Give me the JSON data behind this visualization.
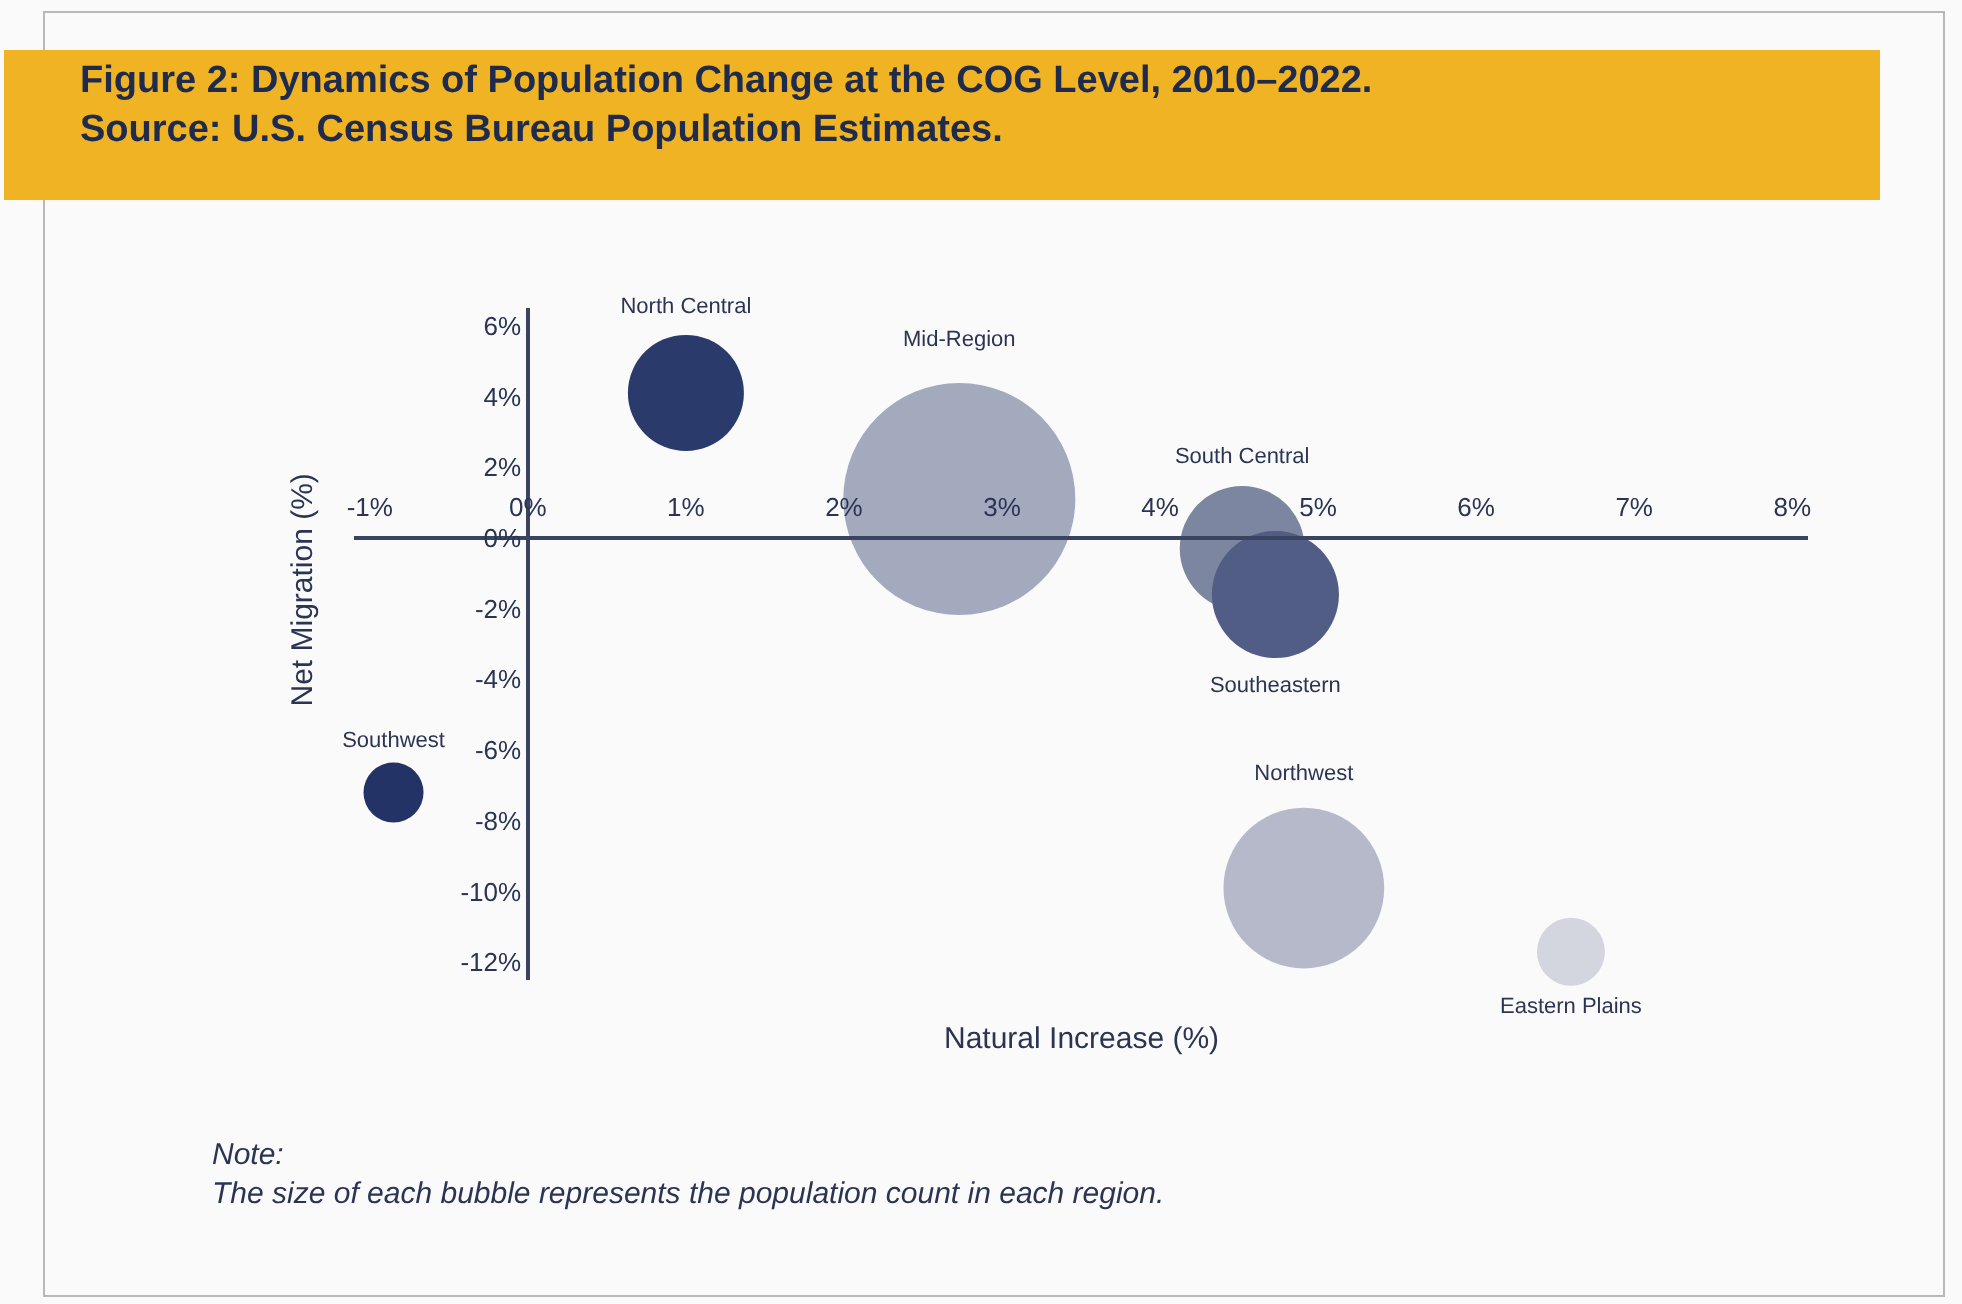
{
  "chart_data": {
    "type": "bubble",
    "title": "Figure 2: Dynamics of Population Change at the COG Level, 2010–2022.\nSource: U.S. Census Bureau Population Estimates.",
    "xlabel": "Natural Increase (%)",
    "ylabel": "Net Migration (%)",
    "series": [
      {
        "name": "North Central",
        "color": "#2a3a6a",
        "x": [
          1.0
        ],
        "values": [
          4.1
        ],
        "sizes": [
          0.25
        ]
      },
      {
        "name": "Mid-Region",
        "color": "#a3aabe",
        "x": [
          2.73
        ],
        "values": [
          1.1
        ],
        "sizes": [
          1
        ]
      },
      {
        "name": "South Central",
        "color": "#7d86a0",
        "x": [
          4.52
        ],
        "values": [
          -0.3
        ],
        "sizes": [
          0.29
        ]
      },
      {
        "name": "Southeastern",
        "color": "#525d85",
        "x": [
          4.73
        ],
        "values": [
          -1.6
        ],
        "sizes": [
          0.3
        ]
      },
      {
        "name": "Southwest",
        "color": "#243366",
        "x": [
          -0.85
        ],
        "values": [
          -7.2
        ],
        "sizes": [
          0.067
        ]
      },
      {
        "name": "Northwest",
        "color": "#b5b9c9",
        "x": [
          4.91
        ],
        "values": [
          -9.9
        ],
        "sizes": [
          0.48
        ]
      },
      {
        "name": "Eastern Plains",
        "color": "#d4d6df",
        "x": [
          6.6
        ],
        "values": [
          -11.7
        ],
        "sizes": [
          0.086
        ]
      }
    ],
    "xlim": [
      -1.1,
      8.1
    ],
    "ylim": [
      -12.5,
      6.5
    ],
    "xticks": [
      {
        "value": -1,
        "label": "-1%"
      },
      {
        "value": 0,
        "label": "0%"
      },
      {
        "value": 1,
        "label": "1%"
      },
      {
        "value": 2,
        "label": "2%"
      },
      {
        "value": 3,
        "label": "3%"
      },
      {
        "value": 4,
        "label": "4%"
      },
      {
        "value": 5,
        "label": "5%"
      },
      {
        "value": 6,
        "label": "6%"
      },
      {
        "value": 7,
        "label": "7%"
      },
      {
        "value": 8,
        "label": "8%"
      }
    ],
    "yticks": [
      {
        "value": -12,
        "label": "-12%"
      },
      {
        "value": -10,
        "label": "-10%"
      },
      {
        "value": -8,
        "label": "-8%"
      },
      {
        "value": -6,
        "label": "-6%"
      },
      {
        "value": -4,
        "label": "-4%"
      },
      {
        "value": -2,
        "label": "-2%"
      },
      {
        "value": 0,
        "label": "0%"
      },
      {
        "value": 2,
        "label": "2%"
      },
      {
        "value": 4,
        "label": "4%"
      },
      {
        "value": 6,
        "label": "6%"
      }
    ],
    "annotations": [
      "Note:\nThe size of each bubble represents the population count in each region."
    ],
    "grid": false,
    "legend": false
  }
}
